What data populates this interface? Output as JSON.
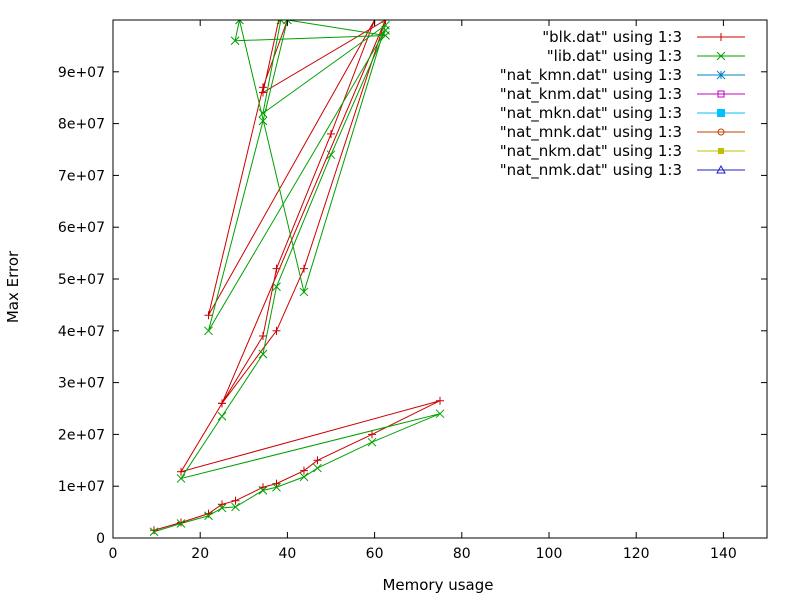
{
  "chart_data": {
    "type": "line",
    "xlabel": "Memory usage",
    "ylabel": "Max Error",
    "xlim": [
      0,
      150
    ],
    "ylim": [
      0,
      100000000
    ],
    "x_ticks": [
      0,
      20,
      40,
      60,
      80,
      100,
      120,
      140
    ],
    "y_ticks": [
      0,
      10000000,
      20000000,
      30000000,
      40000000,
      50000000,
      60000000,
      70000000,
      80000000,
      90000000
    ],
    "x_tick_labels": [
      "0",
      "20",
      "40",
      "60",
      "80",
      "100",
      "120",
      "140"
    ],
    "y_tick_labels": [
      "0",
      "1e+07",
      "2e+07",
      "3e+07",
      "4e+07",
      "5e+07",
      "6e+07",
      "7e+07",
      "8e+07",
      "9e+07"
    ],
    "grid": false,
    "legend_position": "top-right",
    "series": [
      {
        "name": "\"blk.dat\" using 1:3",
        "color": "#cc0000",
        "marker": "plus",
        "x": [
          9.4,
          15.6,
          21.9,
          25,
          28.1,
          34.4,
          37.5,
          43.8,
          46.9,
          59.4,
          75,
          15.6,
          25,
          34.4,
          37.5,
          50,
          60,
          21.9,
          34.4,
          40,
          62.5,
          25,
          37.5,
          43.8,
          62.5,
          34.4,
          38
        ],
        "y": [
          1500000,
          3000000,
          4700000,
          6500000,
          7200000,
          9800000,
          10500000,
          13000000,
          15000000,
          20000000,
          26500000,
          12800000,
          26000000,
          39000000,
          52000000,
          78000000,
          100000000,
          43000000,
          87000000,
          100000000,
          100000000,
          26000000,
          40000000,
          52000000,
          100000000,
          86000000,
          100000000
        ]
      },
      {
        "name": "\"lib.dat\" using 1:3",
        "color": "#00a000",
        "marker": "x",
        "x": [
          9.4,
          15.6,
          21.9,
          25,
          28.1,
          34.4,
          37.5,
          43.8,
          46.9,
          59.4,
          75,
          15.6,
          25,
          34.4,
          37.5,
          50,
          62.5,
          21.9,
          34.4,
          40,
          62.5,
          28,
          29,
          43.8,
          62.5,
          34.4,
          38.5
        ],
        "y": [
          1200000,
          2800000,
          4300000,
          5800000,
          6000000,
          9200000,
          9800000,
          11800000,
          13500000,
          18500000,
          24000000,
          11500000,
          23500000,
          35500000,
          48500000,
          74000000,
          98000000,
          40000000,
          80500000,
          100000000,
          97000000,
          96000000,
          100000000,
          47500000,
          99000000,
          82000000,
          100000000
        ]
      },
      {
        "name": "\"nat_kmn.dat\" using 1:3",
        "color": "#0080c0",
        "marker": "star",
        "x": [],
        "y": []
      },
      {
        "name": "\"nat_knm.dat\" using 1:3",
        "color": "#c000c0",
        "marker": "box",
        "x": [],
        "y": []
      },
      {
        "name": "\"nat_mkn.dat\" using 1:3",
        "color": "#00c0ff",
        "marker": "filled-box",
        "x": [],
        "y": []
      },
      {
        "name": "\"nat_mnk.dat\" using 1:3",
        "color": "#c04000",
        "marker": "circle",
        "x": [],
        "y": []
      },
      {
        "name": "\"nat_nkm.dat\" using 1:3",
        "color": "#c0c000",
        "marker": "filled-small-box",
        "x": [],
        "y": []
      },
      {
        "name": "\"nat_nmk.dat\" using 1:3",
        "color": "#2020c0",
        "marker": "triangle",
        "x": [],
        "y": []
      }
    ]
  }
}
